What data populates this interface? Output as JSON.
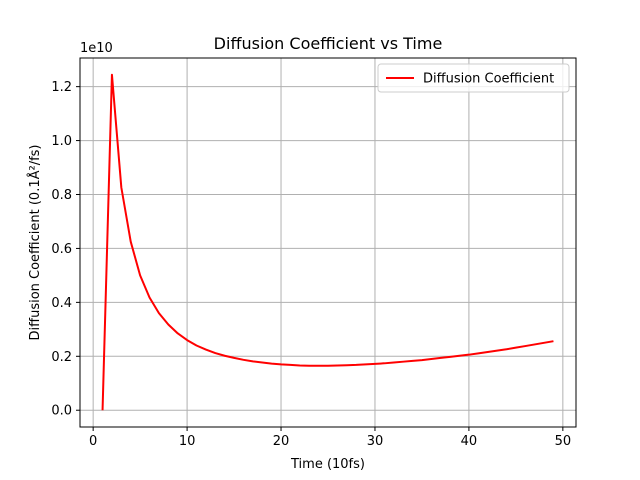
{
  "chart_data": {
    "type": "line",
    "title": "Diffusion Coefficient vs Time",
    "xlabel": "Time (10fs)",
    "ylabel": "Diffusion Coefficient (0.1Å²/fs)",
    "y_offset_label": "1e10",
    "xlim": [
      -1.4,
      51.4
    ],
    "ylim": [
      -0.0622,
      1.3062
    ],
    "x_ticks": [
      0,
      10,
      20,
      30,
      40,
      50
    ],
    "x_tick_labels": [
      "0",
      "10",
      "20",
      "30",
      "40",
      "50"
    ],
    "y_ticks": [
      0.0,
      0.2,
      0.4,
      0.6,
      0.8,
      1.0,
      1.2
    ],
    "y_tick_labels": [
      "0.0",
      "0.2",
      "0.4",
      "0.6",
      "0.8",
      "1.0",
      "1.2"
    ],
    "grid": true,
    "legend_position": "top-right",
    "series": [
      {
        "name": "Diffusion Coefficient",
        "color": "#ff0000",
        "x": [
          1,
          2,
          3,
          4,
          5,
          6,
          7,
          8,
          9,
          10,
          11,
          12,
          13,
          14,
          15,
          16,
          17,
          18,
          19,
          20,
          21,
          22,
          23,
          24,
          25,
          26,
          27,
          28,
          29,
          30,
          31,
          32,
          33,
          34,
          35,
          36,
          37,
          38,
          39,
          40,
          41,
          42,
          43,
          44,
          45,
          46,
          47,
          48,
          49
        ],
        "y": [
          0.0,
          1.244,
          0.826,
          0.625,
          0.5,
          0.418,
          0.36,
          0.318,
          0.285,
          0.26,
          0.24,
          0.225,
          0.212,
          0.202,
          0.194,
          0.187,
          0.181,
          0.177,
          0.173,
          0.17,
          0.168,
          0.166,
          0.165,
          0.165,
          0.165,
          0.166,
          0.167,
          0.168,
          0.17,
          0.172,
          0.174,
          0.177,
          0.18,
          0.183,
          0.186,
          0.19,
          0.194,
          0.198,
          0.202,
          0.206,
          0.211,
          0.216,
          0.221,
          0.226,
          0.232,
          0.238,
          0.244,
          0.25,
          0.256
        ]
      }
    ]
  }
}
